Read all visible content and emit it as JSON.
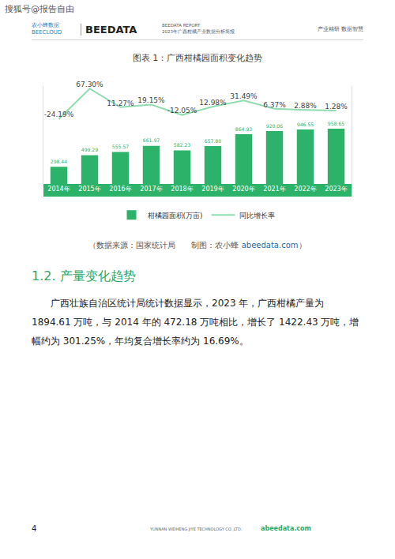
{
  "page_watermark": "搜狐号@报告自由",
  "header": {
    "logo": "农小蜂数据",
    "logo_sub": "BEECLOUD",
    "brand": "BEEDATA",
    "report": "BEEDATA REPORT",
    "report_title": "2023年广西柑橘产业数据分析简报",
    "slogan": "产业精研  数据智慧"
  },
  "figure": {
    "title": "图表 1：广西柑橘园面积变化趋势",
    "source": "（数据来源：国家统计局　　制图：农小蜂 ",
    "source_link": "abeedata.com",
    "source_end": "）"
  },
  "chart_data": {
    "type": "bar",
    "categories": [
      "2014年",
      "2015年",
      "2016年",
      "2017年",
      "2018年",
      "2019年",
      "2020年",
      "2021年",
      "2022年",
      "2023年"
    ],
    "series": [
      {
        "name": "柑橘园面积(万亩)",
        "type": "bar",
        "color": "#2db369",
        "values": [
          298.44,
          499.29,
          555.57,
          661.97,
          582.23,
          657.8,
          864.93,
          920.06,
          946.55,
          958.65
        ],
        "value_labels": [
          "298.44",
          "499.29",
          "555.57",
          "661.97",
          "582.23",
          "657.80",
          "864.93",
          "920.06",
          "946.55",
          "958.65"
        ]
      },
      {
        "name": "同比增长率",
        "type": "line",
        "axis": "y2",
        "color": "#8edcb0",
        "values": [
          -24.19,
          67.3,
          11.27,
          19.15,
          -12.05,
          12.98,
          31.49,
          6.37,
          2.88,
          1.28
        ],
        "value_labels": [
          "-24.19%",
          "67.30%",
          "11.27%",
          "19.15%",
          "-12.05%",
          "12.98%",
          "31.49%",
          "6.37%",
          "2.88%",
          "1.28%"
        ]
      }
    ],
    "ylim": [
      0,
      1700
    ],
    "y2lim": [
      -220,
      75
    ],
    "data_labels": true,
    "tick_labels": "x",
    "legend": "bottom",
    "grid": false
  },
  "section": {
    "heading": "1.2. 产量变化趋势",
    "paragraphs": [
      "广西壮族自治区统计局统计数据显示，2023 年，广西柑橘产量为 1894.61 万吨，与 2014 年的 472.18 万吨相比，增长了 1422.43 万吨，增幅约为 301.25%，年均复合增长率约为 16.69%。"
    ]
  },
  "footer": {
    "page": "4",
    "company": "YUNNAN WEIHENG JIYE TECHNOLOGY CO.,LTD.",
    "site": "abeedata.com"
  }
}
